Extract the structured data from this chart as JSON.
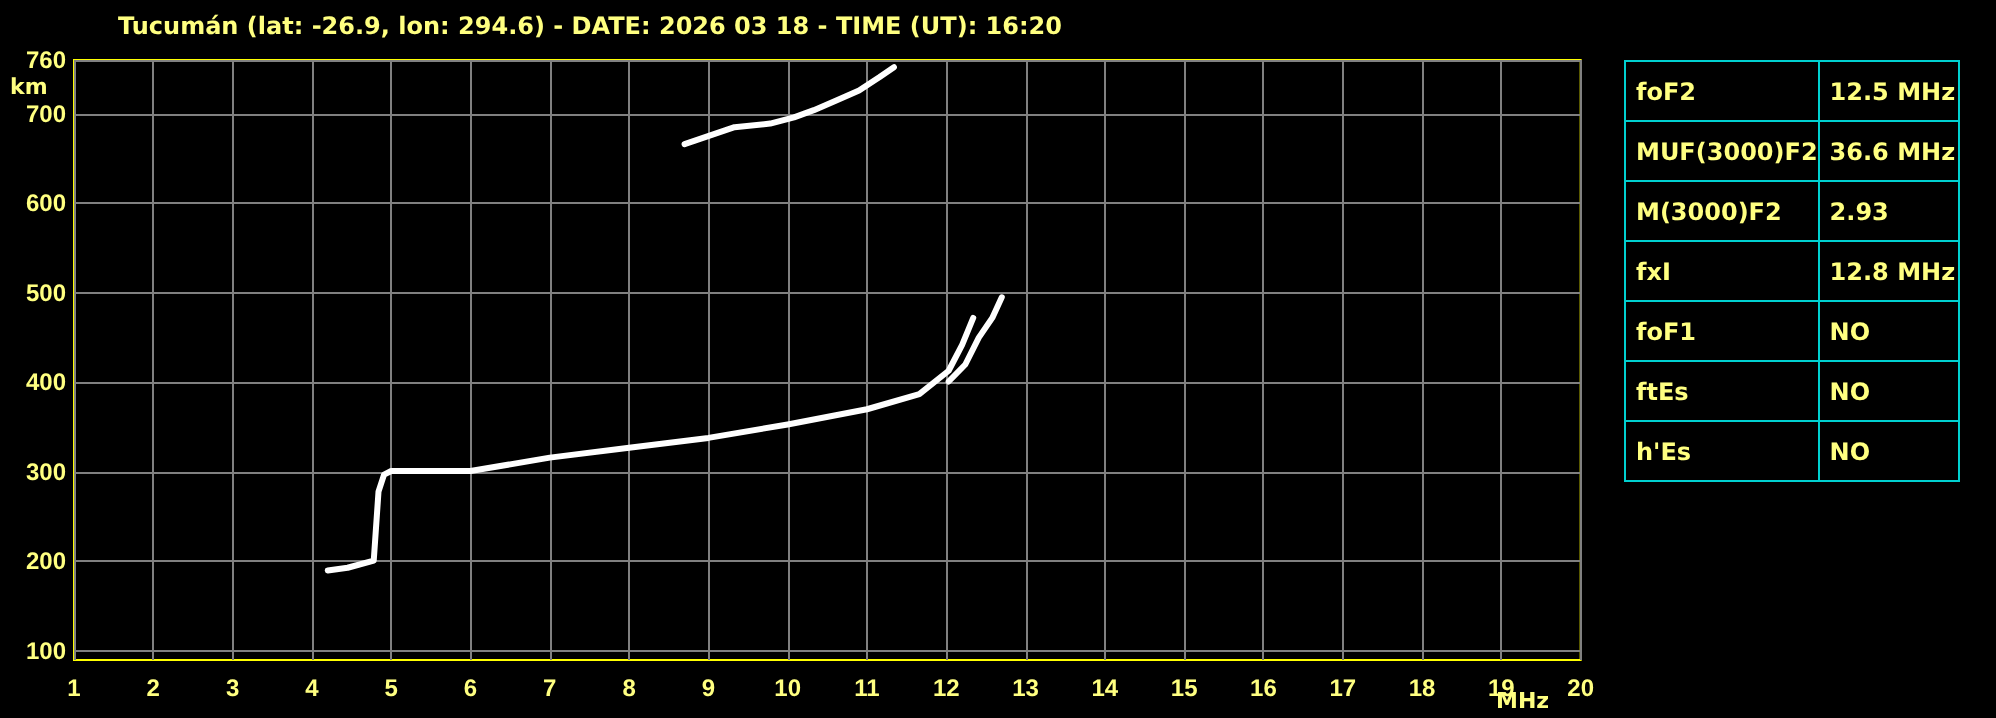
{
  "chart_data": [
    {
      "type": "line",
      "title": "Tucumán (lat: -26.9, lon: 294.6) - DATE: 2026 03 18 - TIME (UT): 16:20",
      "xlabel": "MHz",
      "ylabel": "km",
      "xlim": [
        1,
        20
      ],
      "ylim": [
        90,
        760
      ],
      "xticks": [
        1,
        2,
        3,
        4,
        5,
        6,
        7,
        8,
        9,
        10,
        11,
        12,
        13,
        14,
        15,
        16,
        17,
        18,
        19,
        20
      ],
      "yticks": [
        100,
        200,
        300,
        400,
        500,
        600,
        700,
        760
      ],
      "grid": true,
      "marker": "none",
      "line_style": "solid",
      "series": [
        {
          "color": "#ffffff",
          "x": [
            4.2,
            4.45,
            4.78,
            4.84,
            4.91,
            5.0,
            6.0,
            7.0,
            8.0,
            9.0,
            10.0,
            11.0,
            11.66,
            12.03,
            12.2,
            12.34
          ],
          "values": [
            190,
            193,
            201,
            278,
            297,
            301,
            301,
            316,
            327,
            338,
            353,
            370,
            387,
            413,
            442,
            472
          ]
        },
        {
          "color": "#ffffff",
          "x": [
            12.03,
            12.24,
            12.41,
            12.58,
            12.7
          ],
          "values": [
            401,
            420,
            450,
            472,
            495
          ]
        },
        {
          "color": "#ffffff",
          "x": [
            8.7,
            9.33,
            9.78,
            10.08,
            10.33,
            10.62,
            10.9,
            11.16,
            11.34
          ],
          "values": [
            666,
            685,
            689,
            696,
            704,
            715,
            726,
            741,
            752
          ]
        }
      ]
    },
    {
      "type": "other",
      "annotations": [
        "foF2",
        "12.5 MHz",
        "MUF(3000)F2",
        "36.6 MHz",
        "M(3000)F2",
        "2.93",
        "fxI",
        "12.8 MHz",
        "foF1",
        "NO",
        "ftEs",
        "NO",
        "h'Es",
        "NO"
      ]
    }
  ]
}
